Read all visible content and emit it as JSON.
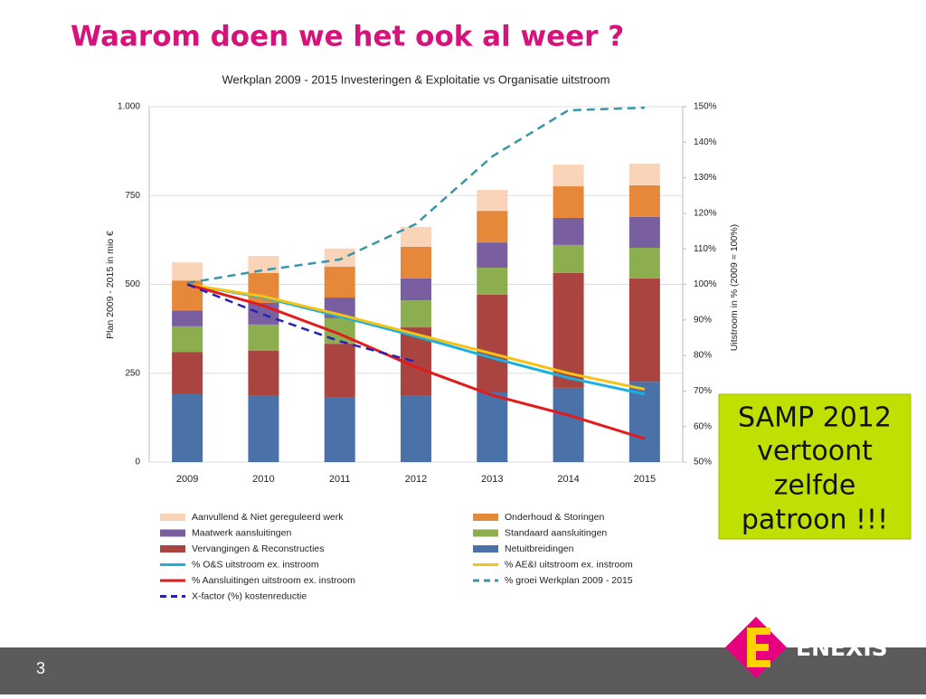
{
  "slide": {
    "title": "Waarom doen we het ook al weer ?",
    "page_number": "3",
    "callout": [
      "SAMP 2012",
      "vertoont",
      "zelfde",
      "patroon !!!"
    ],
    "logo_text": "ENEXIS"
  },
  "chart_data": {
    "type": "bar",
    "title": "Werkplan 2009 - 2015  Investeringen & Exploitatie vs Organisatie uitstroom",
    "ylabel": "Plan 2009 - 2015 in mio €",
    "y2label": "Uitstroom in % (2009 = 100%)",
    "categories": [
      "2009",
      "2010",
      "2011",
      "2012",
      "2013",
      "2014",
      "2015"
    ],
    "ylim": [
      0,
      1000
    ],
    "yticks": [
      0,
      250,
      500,
      750,
      {
        "value": 1000,
        "label": "1.000"
      }
    ],
    "y2lim": [
      50,
      150
    ],
    "y2ticks": [
      {
        "value": 50,
        "label": "50%"
      },
      {
        "value": 60,
        "label": "60%"
      },
      {
        "value": 70,
        "label": "70%"
      },
      {
        "value": 80,
        "label": "80%"
      },
      {
        "value": 90,
        "label": "90%"
      },
      {
        "value": 100,
        "label": "100%"
      },
      {
        "value": 110,
        "label": "110%"
      },
      {
        "value": 120,
        "label": "120%"
      },
      {
        "value": 130,
        "label": "130%"
      },
      {
        "value": 140,
        "label": "140%"
      },
      {
        "value": 150,
        "label": "150%"
      }
    ],
    "grid": true,
    "stacked": true,
    "series": [
      {
        "name": "Aanvullend  & Niet gereguleerd werk",
        "type": "bar",
        "color": "#fad4b8",
        "values": [
          51,
          48,
          51,
          56,
          59,
          61,
          61
        ]
      },
      {
        "name": "Onderhoud  & Storingen",
        "type": "bar",
        "color": "#e5883a",
        "values": [
          84,
          84,
          87,
          89,
          89,
          89,
          89
        ]
      },
      {
        "name": "Maatwerk aansluitingen",
        "type": "bar",
        "color": "#7a5fa0",
        "values": [
          45,
          61,
          58,
          62,
          71,
          76,
          87
        ]
      },
      {
        "name": "Standaard aansluitingen",
        "type": "bar",
        "color": "#8cae4e",
        "values": [
          72,
          74,
          72,
          76,
          76,
          79,
          86
        ]
      },
      {
        "name": "Vervangingen & Reconstructies",
        "type": "bar",
        "color": "#a94441",
        "values": [
          119,
          127,
          152,
          193,
          275,
          323,
          291
        ]
      },
      {
        "name": "Netuitbreidingen",
        "type": "bar",
        "color": "#4a72a8",
        "values": [
          191,
          186,
          181,
          186,
          196,
          209,
          226
        ]
      },
      {
        "name": "% O&S uitstroom ex. instroom",
        "type": "line",
        "axis": "y2",
        "color": "#1ab0e0",
        "values": [
          100,
          96.3,
          91,
          85.4,
          79.3,
          73.7,
          69.1
        ]
      },
      {
        "name": "% AE&I uitstroom ex. instroom",
        "type": "line",
        "axis": "y2",
        "color": "#f5c314",
        "values": [
          100,
          96.6,
          91.5,
          86,
          80.5,
          75,
          70.5
        ]
      },
      {
        "name": "% Aansluitingen uitstroom ex. instroom",
        "type": "line",
        "axis": "y2",
        "color": "#e21b1b",
        "values": [
          100,
          94,
          86,
          76.7,
          68.8,
          63.2,
          56.6
        ]
      },
      {
        "name": "% groei Werkplan 2009 - 2015",
        "type": "line",
        "axis": "y2",
        "dashed": true,
        "color": "#3a95a8",
        "values": [
          100.4,
          104,
          107,
          117,
          136,
          149,
          149.7
        ]
      },
      {
        "name": "X-factor (%) kostenreductie",
        "type": "line",
        "axis": "y2",
        "dashed": true,
        "color": "#2424b4",
        "values": [
          100,
          91.5,
          84,
          78.2,
          null,
          null,
          null
        ]
      }
    ]
  }
}
